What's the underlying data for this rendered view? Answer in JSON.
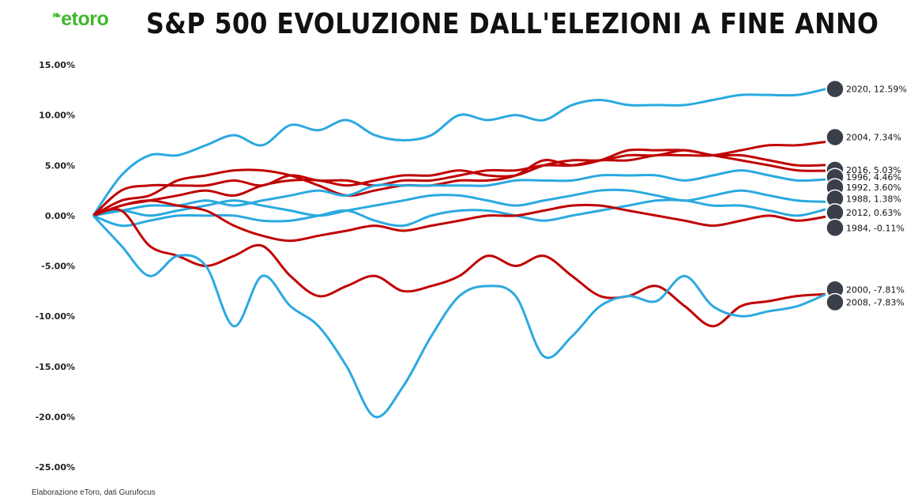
{
  "logo": "etoro",
  "title": "S&P 500 EVOLUZIONE DALL'ELEZIONI A FINE ANNO",
  "source": "Elaborazione eToro, dati Gurufocus",
  "colors": {
    "blue": "#2aa9e0",
    "red": "#c00000"
  },
  "chart_data": {
    "type": "line",
    "title": "S&P 500 EVOLUZIONE DALL'ELEZIONI A FINE ANNO",
    "ylim": [
      -25,
      15
    ],
    "yticks": [
      15,
      10,
      5,
      0,
      -5,
      -10,
      -15,
      -20,
      -25
    ],
    "ytick_labels": [
      "15.00%",
      "10.00%",
      "5.00%",
      "0.00%",
      "-5.00%",
      "-10.00%",
      "-15.00%",
      "-20.00%",
      "-25.00%"
    ],
    "grid": false,
    "series": [
      {
        "name": "2020",
        "label": "2020, 12.59%",
        "color": "blue",
        "values": [
          0,
          4,
          6,
          6,
          7,
          8,
          7,
          9,
          8.5,
          9.5,
          8,
          7.5,
          8,
          10,
          9.5,
          10,
          9.5,
          11,
          11.5,
          11,
          11,
          11,
          11.5,
          12,
          12,
          12,
          12.59
        ]
      },
      {
        "name": "2004",
        "label": "2004, 7.34%",
        "color": "red",
        "values": [
          0,
          2.5,
          3,
          3,
          3,
          3.5,
          3,
          4,
          3.5,
          3.5,
          3,
          3.5,
          3.5,
          4,
          4.5,
          4.5,
          5,
          5,
          5.5,
          5.5,
          6,
          6,
          6,
          6.5,
          7,
          7,
          7.34
        ]
      },
      {
        "name": "2016",
        "label": "2016, 5.03%",
        "color": "red",
        "values": [
          0,
          1,
          1.5,
          2,
          2.5,
          2,
          3,
          3.5,
          3.5,
          3,
          3.5,
          4,
          4,
          4.5,
          4,
          4,
          5,
          5.5,
          5.5,
          6,
          6,
          6.5,
          6,
          6,
          5.5,
          5,
          5.03
        ]
      },
      {
        "name": "1996",
        "label": "1996, 4.46%",
        "color": "red",
        "values": [
          0,
          1.5,
          2,
          3.5,
          4,
          4.5,
          4.5,
          4,
          3,
          2,
          2.5,
          3,
          3,
          3.5,
          3.5,
          4,
          5.5,
          5,
          5.5,
          6.5,
          6.5,
          6.5,
          6,
          5.5,
          5,
          4.5,
          4.46
        ]
      },
      {
        "name": "1992",
        "label": "1992, 3.60%",
        "color": "blue",
        "values": [
          0,
          0.5,
          1,
          1,
          1.5,
          1,
          1.5,
          2,
          2.5,
          2,
          3,
          3,
          3,
          3,
          3,
          3.5,
          3.5,
          3.5,
          4,
          4,
          4,
          3.5,
          4,
          4.5,
          4,
          3.5,
          3.6
        ]
      },
      {
        "name": "1988",
        "label": "1988, 1.38%",
        "color": "blue",
        "values": [
          0,
          0.5,
          0,
          0.5,
          1,
          1.5,
          1,
          0.5,
          0,
          0.5,
          1,
          1.5,
          2,
          2,
          1.5,
          1,
          1.5,
          2,
          2.5,
          2.5,
          2,
          1.5,
          2,
          2.5,
          2,
          1.5,
          1.38
        ]
      },
      {
        "name": "2012",
        "label": "2012, 0.63%",
        "color": "blue",
        "values": [
          0,
          -1,
          -0.5,
          0,
          0,
          0,
          -0.5,
          -0.5,
          0,
          0.5,
          -0.5,
          -1,
          0,
          0.5,
          0.5,
          0,
          -0.5,
          0,
          0.5,
          1,
          1.5,
          1.5,
          1,
          1,
          0.5,
          0,
          0.63
        ]
      },
      {
        "name": "1984",
        "label": "1984, -0.11%",
        "color": "red",
        "values": [
          0,
          1,
          1.5,
          1,
          0.5,
          -1,
          -2,
          -2.5,
          -2,
          -1.5,
          -1,
          -1.5,
          -1,
          -0.5,
          0,
          0,
          0.5,
          1,
          1,
          0.5,
          0,
          -0.5,
          -1,
          -0.5,
          0,
          -0.5,
          -0.11
        ]
      },
      {
        "name": "2000",
        "label": "2000, -7.81%",
        "color": "red",
        "values": [
          0,
          0.5,
          -3,
          -4,
          -5,
          -4,
          -3,
          -6,
          -8,
          -7,
          -6,
          -7.5,
          -7,
          -6,
          -4,
          -5,
          -4,
          -6,
          -8,
          -8,
          -7,
          -9,
          -11,
          -9,
          -8.5,
          -8,
          -7.81
        ]
      },
      {
        "name": "2008",
        "label": "2008, -7.83%",
        "color": "blue",
        "values": [
          0,
          -3,
          -6,
          -4,
          -5,
          -11,
          -6,
          -9,
          -11,
          -15,
          -20,
          -17,
          -12,
          -8,
          -7,
          -8,
          -14,
          -12,
          -9,
          -8,
          -8.5,
          -6,
          -9,
          -10,
          -9.5,
          -9,
          -7.83
        ]
      }
    ]
  }
}
